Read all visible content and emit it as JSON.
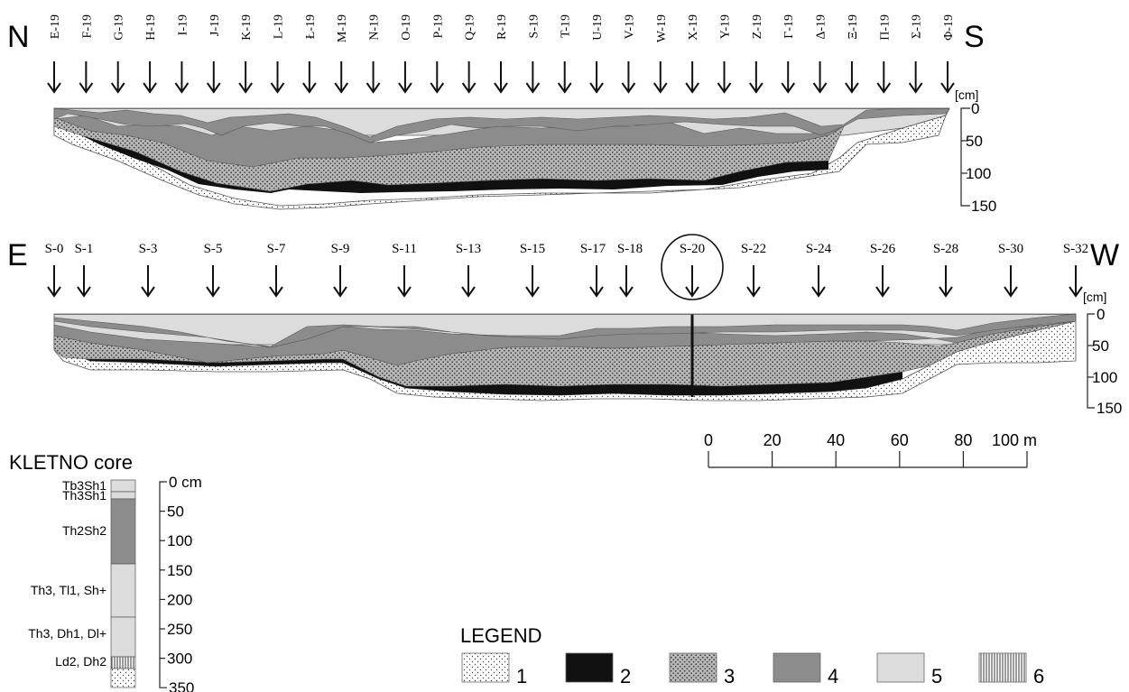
{
  "ns_profile": {
    "left_dir": "N",
    "right_dir": "S",
    "stations": [
      "E-19",
      "F-19",
      "G-19",
      "H-19",
      "I-19",
      "J-19",
      "K-19",
      "L-19",
      "Ł-19",
      "M-19",
      "N-19",
      "O-19",
      "P-19",
      "Q-19",
      "R-19",
      "S-19",
      "T-19",
      "U-19",
      "V-19",
      "W-19",
      "X-19",
      "Y-19",
      "Z-19",
      "Γ-19",
      "Δ-19",
      "Ξ-19",
      "Π-19",
      "Σ-19",
      "Φ-19"
    ],
    "depth_unit": "[cm]",
    "depth_ticks": [
      "0",
      "50",
      "100",
      "150"
    ]
  },
  "ew_profile": {
    "left_dir": "E",
    "right_dir": "W",
    "stations": [
      "S-0",
      "S-1",
      "S-3",
      "S-5",
      "S-7",
      "S-9",
      "S-11",
      "S-13",
      "S-15",
      "S-17",
      "S-18",
      "S-20",
      "S-22",
      "S-24",
      "S-26",
      "S-28",
      "S-30",
      "S-32"
    ],
    "circled_station": "S-20",
    "depth_unit": "[cm]",
    "depth_ticks": [
      "0",
      "50",
      "100",
      "150"
    ]
  },
  "scale_bar": {
    "ticks": [
      "0",
      "20",
      "40",
      "60",
      "80",
      "100 m"
    ]
  },
  "core": {
    "title": "KLETNO core",
    "layers": [
      {
        "label": "Tb3Sh1",
        "legend": 5
      },
      {
        "label": "Th3Sh1",
        "legend": 5
      },
      {
        "label": "Th2Sh2",
        "legend": 4
      },
      {
        "label": "Th3, Tl1, Sh+",
        "legend": 5
      },
      {
        "label": "Th3, Dh1, Dl+",
        "legend": 5
      },
      {
        "label": "Ld2, Dh2",
        "legend": 6
      },
      {
        "label": "",
        "legend": 1
      }
    ],
    "depth_ticks": [
      "0 cm",
      "50",
      "100",
      "150",
      "200",
      "250",
      "300",
      "350"
    ]
  },
  "legend": {
    "title": "LEGEND",
    "items": [
      {
        "num": "1",
        "pattern": "sand-dots"
      },
      {
        "num": "2",
        "pattern": "black"
      },
      {
        "num": "3",
        "pattern": "dense-dots"
      },
      {
        "num": "4",
        "pattern": "dark-grey"
      },
      {
        "num": "5",
        "pattern": "light-grey"
      },
      {
        "num": "6",
        "pattern": "vertical-lines"
      }
    ]
  },
  "colors": {
    "black": "#111111",
    "dark_grey": "#8c8c8c",
    "light_grey": "#dcdcdc",
    "dot_fill": "#b4b4b4"
  }
}
